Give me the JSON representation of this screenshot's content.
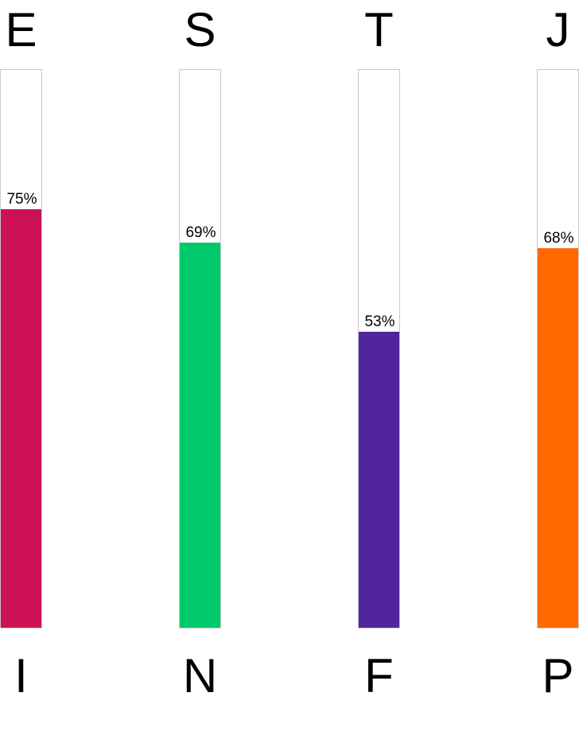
{
  "chart_data": {
    "type": "bar",
    "orientation": "vertical",
    "ylim": [
      0,
      100
    ],
    "grid": false,
    "dimensions": [
      {
        "top_label": "E",
        "bottom_label": "I",
        "value": 75,
        "value_label": "75%",
        "color": "#CC1157"
      },
      {
        "top_label": "S",
        "bottom_label": "N",
        "value": 69,
        "value_label": "69%",
        "color": "#00C96B"
      },
      {
        "top_label": "T",
        "bottom_label": "F",
        "value": 53,
        "value_label": "53%",
        "color": "#51259C"
      },
      {
        "top_label": "J",
        "bottom_label": "P",
        "value": 68,
        "value_label": "68%",
        "color": "#FF6A00"
      }
    ]
  }
}
